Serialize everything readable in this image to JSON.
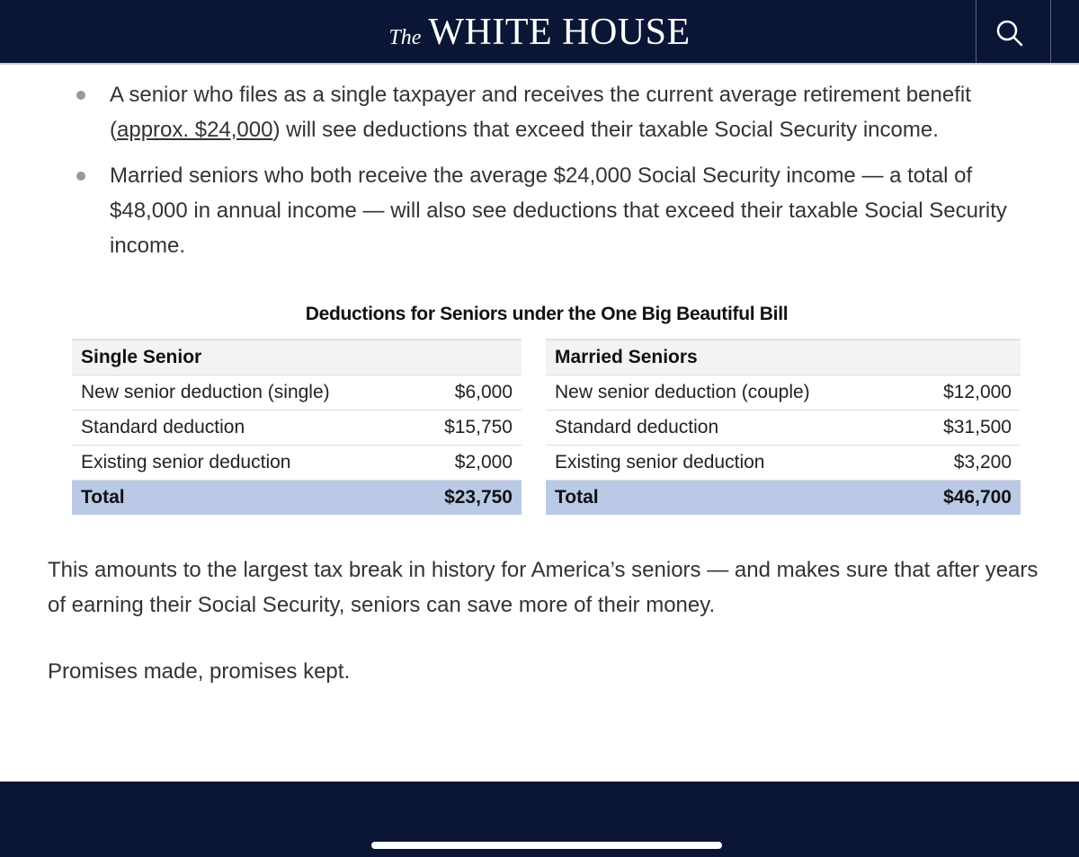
{
  "header": {
    "brand_prefix": "The",
    "brand": "WHITE HOUSE"
  },
  "bullets": [
    {
      "before": "A senior who files as a single taxpayer and receives the current average retirement benefit (",
      "link": "approx. $24,000",
      "after": ") will see deductions that exceed their taxable Social Security income."
    },
    {
      "before": "Married seniors who both receive the average $24,000 Social Security income — a total of $48,000 in annual income — will also see deductions that exceed their taxable Social Security income."
    }
  ],
  "table": {
    "title": "Deductions for Seniors under the One Big Beautiful Bill",
    "groups": [
      {
        "header": "Single Senior",
        "rows": [
          [
            "New senior deduction (single)",
            "$6,000"
          ],
          [
            "Standard deduction",
            "$15,750"
          ],
          [
            "Existing senior deduction",
            "$2,000"
          ]
        ],
        "total": [
          "Total",
          "$23,750"
        ]
      },
      {
        "header": "Married Seniors",
        "rows": [
          [
            "New senior deduction (couple)",
            "$12,000"
          ],
          [
            "Standard deduction",
            "$31,500"
          ],
          [
            "Existing senior deduction",
            "$3,200"
          ]
        ],
        "total": [
          "Total",
          "$46,700"
        ]
      }
    ]
  },
  "paragraphs": [
    "This amounts to the largest tax break in history for America’s seniors — and makes sure that after years of earning their Social Security, seniors can save more of their money.",
    "Promises made, promises kept."
  ]
}
